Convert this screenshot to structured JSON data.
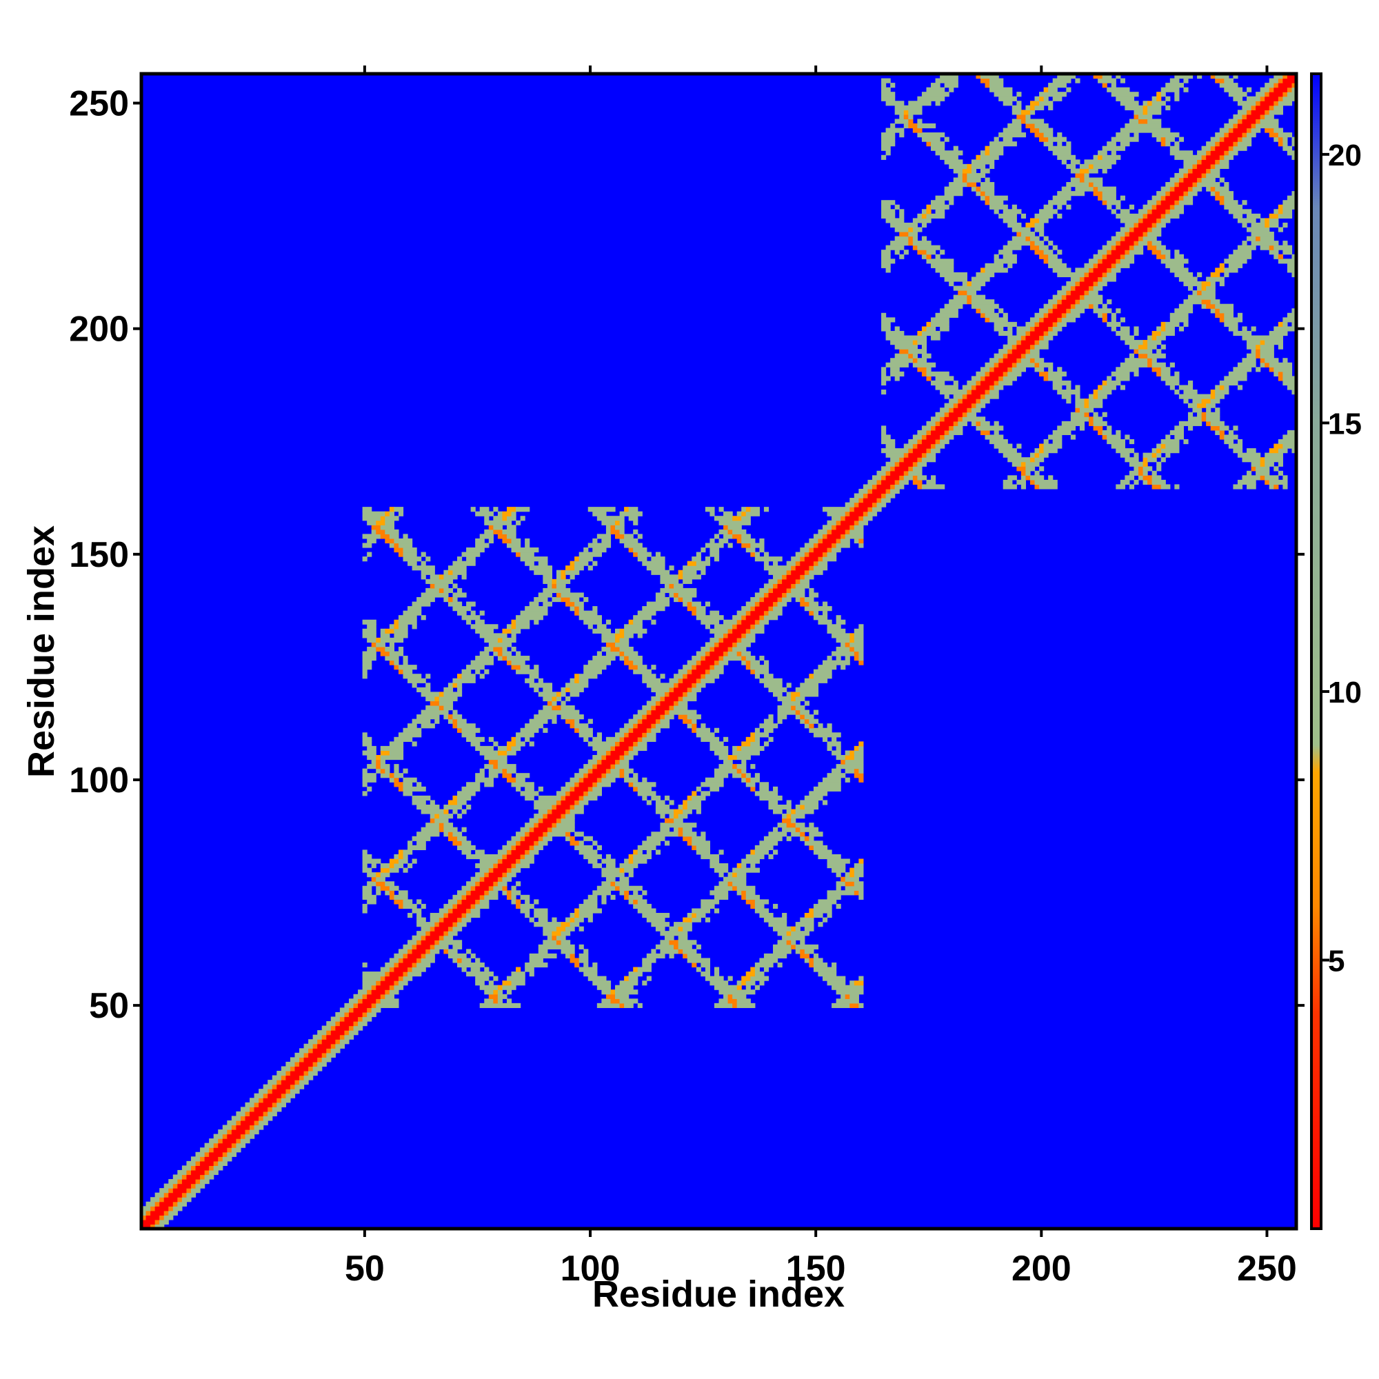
{
  "chart_data": {
    "type": "heatmap",
    "title": "",
    "xlabel": "Residue index",
    "ylabel": "Residue index",
    "xlim": [
      1,
      256
    ],
    "ylim": [
      1,
      256
    ],
    "x_ticks": [
      "50",
      "100",
      "150",
      "200",
      "250"
    ],
    "y_ticks": [
      "50",
      "100",
      "150",
      "200",
      "250"
    ],
    "x_tick_values": [
      50,
      100,
      150,
      200,
      250
    ],
    "y_tick_values": [
      50,
      100,
      150,
      200,
      250
    ],
    "colorbar": {
      "ticks": [
        "5",
        "10",
        "15",
        "20"
      ],
      "tick_values": [
        5,
        10,
        15,
        20
      ],
      "range": [
        0,
        21.5
      ],
      "stops": [
        {
          "value": 0,
          "color": "#ff0000"
        },
        {
          "value": 4,
          "color": "#ff3300"
        },
        {
          "value": 6,
          "color": "#ff8800"
        },
        {
          "value": 8.5,
          "color": "#ffa500"
        },
        {
          "value": 9,
          "color": "#9fbf8a"
        },
        {
          "value": 15,
          "color": "#8aaa9a"
        },
        {
          "value": 19,
          "color": "#6a88b8"
        },
        {
          "value": 21.5,
          "color": "#0000ff"
        }
      ]
    },
    "background_value": 21.5,
    "domains": [
      {
        "name": "",
        "range": [
          50,
          160
        ]
      },
      {
        "name": "",
        "range": [
          165,
          256
        ]
      }
    ],
    "diagonal_band_width": 4,
    "grid": false,
    "legend": "colorbar-right",
    "colors": {
      "background": "#0000ff",
      "diagonal": "#ff0000",
      "contact_strong": "#ff7f00",
      "contact_medium": "#ffa500",
      "contact_weak": "#9dbb8c",
      "frame": "#000000"
    }
  }
}
